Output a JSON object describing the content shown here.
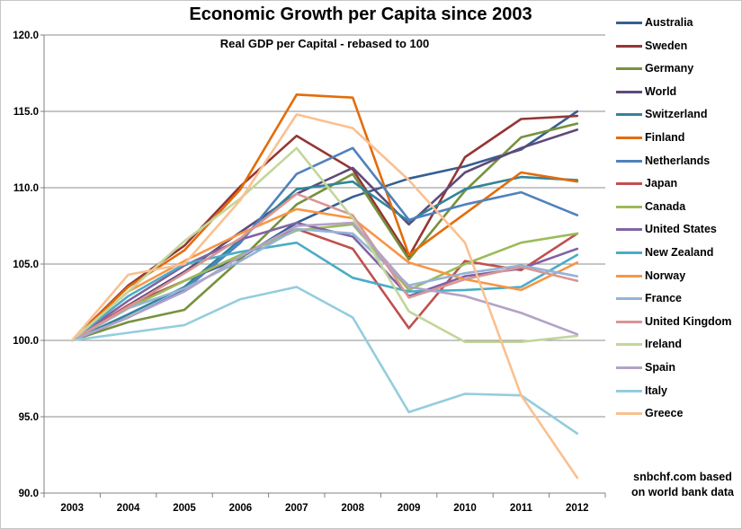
{
  "title": "Economic Growth per Capita since 2003",
  "subtitle": "Real GDP per Capital - rebased to 100",
  "attribution": {
    "line1": "snbchf.com based",
    "line2": "on world bank data"
  },
  "axis_colors": {
    "grid": "#8c8c8c",
    "axis": "#808080",
    "label": "#000000"
  },
  "chart_data": {
    "type": "line",
    "x": [
      "2003",
      "2004",
      "2005",
      "2006",
      "2007",
      "2008",
      "2009",
      "2010",
      "2011",
      "2012"
    ],
    "xlabel": "",
    "ylabel": "",
    "ylim": [
      90,
      120
    ],
    "ytick_step": 5,
    "yticks": [
      "90.0",
      "95.0",
      "100.0",
      "105.0",
      "110.0",
      "115.0",
      "120.0"
    ],
    "grid": true,
    "legend_position": "right",
    "series": [
      {
        "name": "Australia",
        "color": "#365F91",
        "values": [
          100,
          102.3,
          103.9,
          105.4,
          107.7,
          109.4,
          110.6,
          111.4,
          112.5,
          115.0
        ]
      },
      {
        "name": "Sweden",
        "color": "#943634",
        "values": [
          100,
          103.6,
          106.2,
          110.1,
          113.4,
          111.2,
          105.5,
          112.0,
          114.5,
          114.7
        ]
      },
      {
        "name": "Germany",
        "color": "#76923C",
        "values": [
          100,
          101.2,
          102.0,
          105.3,
          108.9,
          110.9,
          105.3,
          109.8,
          113.3,
          114.2
        ]
      },
      {
        "name": "World",
        "color": "#5F497A",
        "values": [
          100,
          102.3,
          104.5,
          107.1,
          109.6,
          111.3,
          107.6,
          111.0,
          112.6,
          113.8
        ]
      },
      {
        "name": "Switzerland",
        "color": "#31849B",
        "values": [
          100,
          101.7,
          103.5,
          106.6,
          109.9,
          110.4,
          107.8,
          109.9,
          110.7,
          110.5
        ]
      },
      {
        "name": "Finland",
        "color": "#E36C0A",
        "values": [
          100,
          103.5,
          105.9,
          109.9,
          116.1,
          115.9,
          105.6,
          108.3,
          111.0,
          110.4
        ]
      },
      {
        "name": "Netherlands",
        "color": "#4F81BD",
        "values": [
          100,
          101.5,
          103.3,
          106.4,
          110.9,
          112.6,
          107.9,
          108.9,
          109.7,
          108.2
        ]
      },
      {
        "name": "Japan",
        "color": "#C0504D",
        "values": [
          100,
          102.3,
          103.9,
          105.6,
          107.3,
          106.0,
          100.8,
          105.2,
          104.6,
          107.0
        ]
      },
      {
        "name": "Canada",
        "color": "#9BBB59",
        "values": [
          100,
          102.1,
          103.9,
          105.6,
          107.2,
          107.6,
          103.3,
          105.0,
          106.4,
          107.0
        ]
      },
      {
        "name": "United States",
        "color": "#8064A2",
        "values": [
          100,
          102.6,
          104.9,
          106.6,
          107.7,
          106.8,
          102.9,
          104.2,
          104.7,
          106.0
        ]
      },
      {
        "name": "New Zealand",
        "color": "#4BACC6",
        "values": [
          100,
          102.9,
          105.0,
          105.8,
          106.4,
          104.1,
          103.2,
          103.3,
          103.5,
          105.6
        ]
      },
      {
        "name": "Norway",
        "color": "#F79646",
        "values": [
          100,
          103.2,
          105.2,
          107.0,
          108.6,
          108.0,
          105.1,
          104.0,
          103.3,
          105.1
        ]
      },
      {
        "name": "France",
        "color": "#95B3D7",
        "values": [
          100,
          102.1,
          103.4,
          105.2,
          107.3,
          107.0,
          103.6,
          104.4,
          104.9,
          104.2
        ]
      },
      {
        "name": "United Kingdom",
        "color": "#D99694",
        "values": [
          100,
          102.2,
          104.4,
          106.7,
          109.6,
          108.2,
          102.8,
          104.0,
          104.8,
          103.9
        ]
      },
      {
        "name": "Ireland",
        "color": "#C3D69B",
        "values": [
          100,
          103.2,
          106.5,
          109.3,
          112.6,
          108.0,
          101.9,
          99.9,
          99.9,
          100.3
        ]
      },
      {
        "name": "Spain",
        "color": "#B3A2C7",
        "values": [
          100,
          101.5,
          103.2,
          105.5,
          107.5,
          107.7,
          103.5,
          102.9,
          101.8,
          100.4
        ]
      },
      {
        "name": "Italy",
        "color": "#93CDDD",
        "values": [
          100,
          100.5,
          101.0,
          102.7,
          103.5,
          101.5,
          95.3,
          96.5,
          96.4,
          93.9
        ]
      },
      {
        "name": "Greece",
        "color": "#FAC090",
        "values": [
          100,
          104.3,
          105.0,
          109.2,
          114.8,
          113.9,
          110.5,
          106.4,
          96.4,
          91.0
        ]
      }
    ]
  }
}
